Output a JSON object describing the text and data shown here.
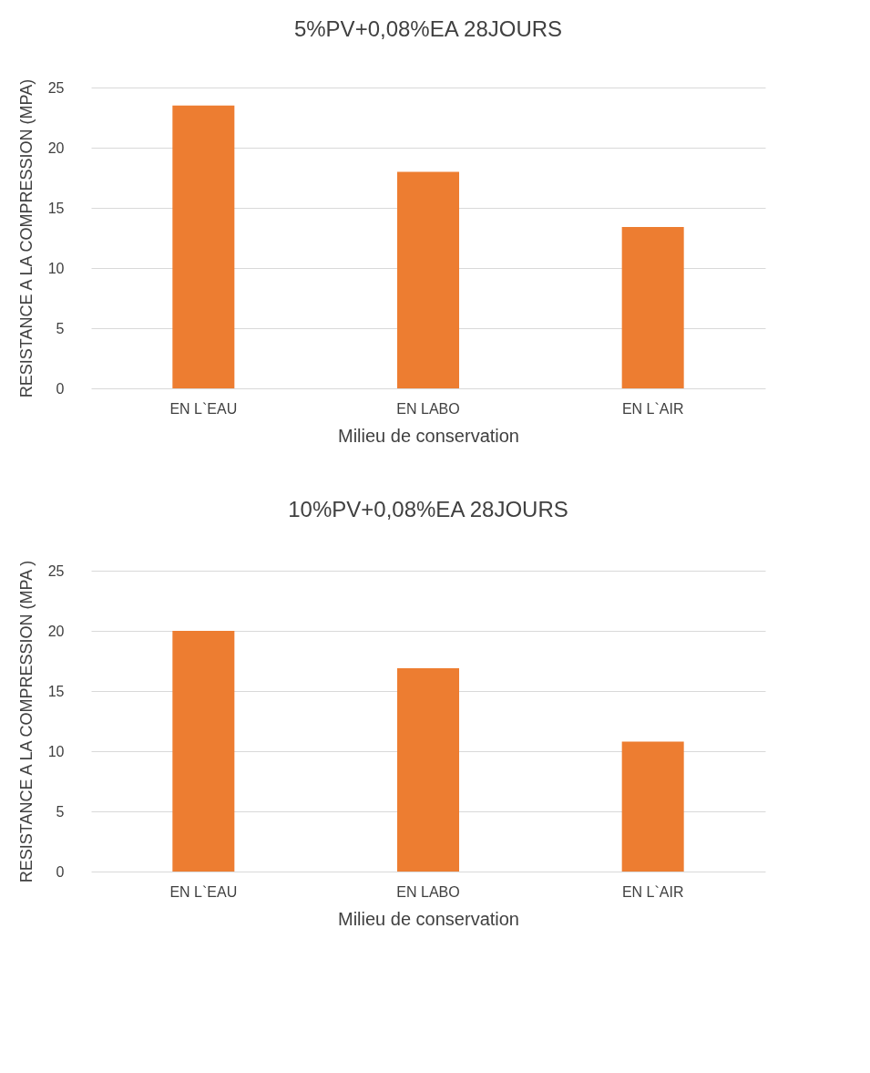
{
  "chart_data": [
    {
      "type": "bar",
      "title": "5%PV+0,08%EA  28JOURS",
      "xlabel": "Milieu de conservation",
      "ylabel": "RESISTANCE A LA COMPRESSION (MPA)",
      "categories": [
        "EN L`EAU",
        "EN LABO",
        "EN L`AIR"
      ],
      "values": [
        23.5,
        18,
        13.4
      ],
      "color": "#ed7d31",
      "ylim": [
        0,
        25
      ],
      "yticks": [
        0,
        5,
        10,
        15,
        20,
        25
      ],
      "grid": "y"
    },
    {
      "type": "bar",
      "title": "10%PV+0,08%EA  28JOURS",
      "xlabel": "Milieu de conservation",
      "ylabel": "RESISTANCE A LA COMPRESSION (MPA )",
      "categories": [
        "EN L`EAU",
        "EN LABO",
        "EN L`AIR"
      ],
      "values": [
        20,
        16.9,
        10.8
      ],
      "color": "#ed7d31",
      "ylim": [
        0,
        25
      ],
      "yticks": [
        0,
        5,
        10,
        15,
        20,
        25
      ],
      "grid": "y"
    }
  ]
}
